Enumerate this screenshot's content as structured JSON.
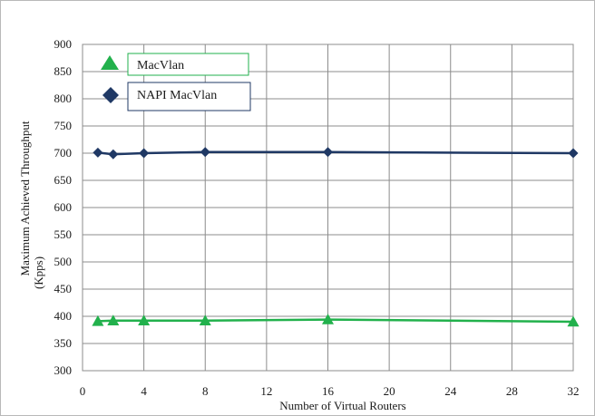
{
  "chart_data": {
    "type": "line",
    "xlabel": "Number of Virtual Routers",
    "ylabel_lines": [
      "Maximum Achieved Throughput",
      "(Kpps)"
    ],
    "x_ticks": [
      0,
      4,
      8,
      12,
      16,
      20,
      24,
      28,
      32
    ],
    "y_ticks": [
      300,
      350,
      400,
      450,
      500,
      550,
      600,
      650,
      700,
      750,
      800,
      850,
      900
    ],
    "xlim": [
      0,
      32
    ],
    "ylim": [
      300,
      900
    ],
    "grid": true,
    "legend_position": "top-left",
    "series": [
      {
        "name": "MacVlan",
        "color": "#22b14c",
        "marker": "triangle",
        "x": [
          1,
          2,
          4,
          8,
          16,
          32
        ],
        "y": [
          391,
          392,
          392,
          392,
          394,
          390
        ]
      },
      {
        "name": "NAPI MacVlan",
        "color": "#1f3864",
        "marker": "diamond",
        "x": [
          1,
          2,
          4,
          8,
          16,
          32
        ],
        "y": [
          701,
          698,
          700,
          702,
          702,
          700
        ]
      }
    ]
  }
}
